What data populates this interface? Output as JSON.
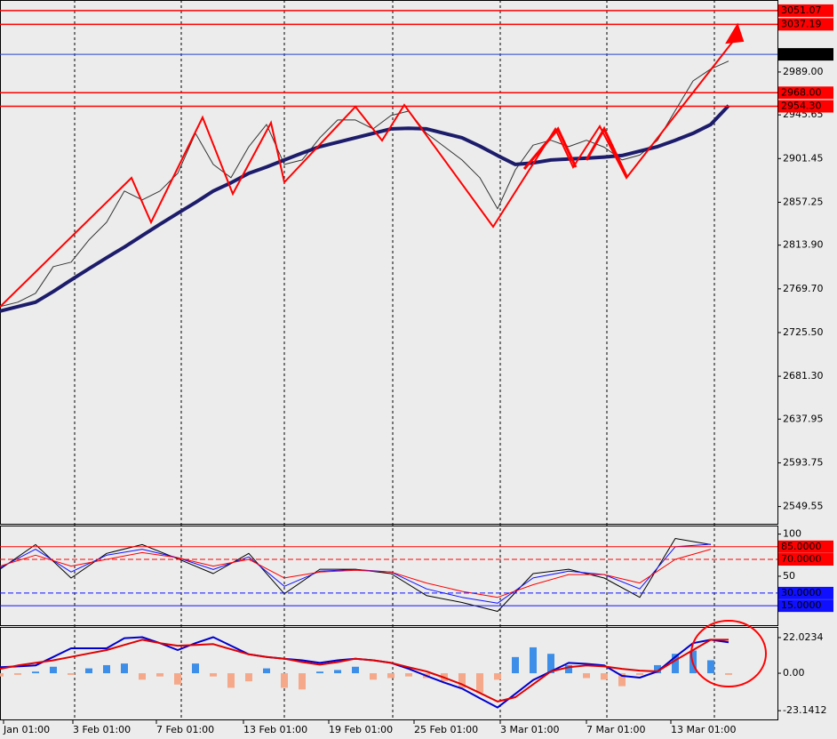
{
  "chart_data": [
    {
      "type": "line",
      "x": [
        0,
        4,
        8,
        12,
        16,
        20,
        24,
        28,
        32,
        36,
        40,
        44,
        48,
        52,
        56,
        60,
        64,
        68,
        72,
        76,
        80,
        84,
        88,
        92,
        96,
        100,
        104,
        108,
        112,
        116,
        120,
        124,
        128,
        132,
        136,
        140,
        144,
        148,
        152,
        156,
        160,
        164
      ],
      "series": [
        {
          "color": "#333333",
          "width": 1,
          "values": [
            2751.7,
            2756.2,
            2765.2,
            2792.2,
            2796.7,
            2819.1,
            2837.1,
            2868.6,
            2859.6,
            2868.6,
            2886.5,
            2927.0,
            2895.5,
            2882.1,
            2913.5,
            2936.0,
            2895.5,
            2900.0,
            2922.5,
            2940.5,
            2940.5,
            2931.5,
            2945.0,
            2949.5,
            2927.0,
            2913.5,
            2900.0,
            2882.1,
            2850.6,
            2890.0,
            2915.0,
            2920.0,
            2913.5,
            2920.0,
            2913.0,
            2900.0,
            2905.0,
            2920.0,
            2950.0,
            2980.0,
            2992.0,
            3000.0
          ]
        },
        {
          "color": "#1c1c6b",
          "width": 4,
          "values": [
            2747.2,
            2751.7,
            2756.2,
            2767,
            2778.7,
            2790,
            2801.2,
            2812,
            2823.6,
            2835,
            2846.1,
            2857,
            2868.6,
            2877,
            2886.5,
            2893,
            2900,
            2907,
            2913.5,
            2918,
            2922.5,
            2927,
            2931.5,
            2932,
            2931.5,
            2927,
            2922.5,
            2914,
            2904.5,
            2895.5,
            2897,
            2900,
            2901,
            2901.8,
            2903,
            2904.5,
            2909,
            2913.5,
            2920,
            2927,
            2936,
            2955
          ]
        }
      ],
      "xlim": [
        0,
        175
      ],
      "xticks": [
        {
          "value": 0.8,
          "label": "Jan 01:00"
        },
        {
          "value": 16.4,
          "label": "3 Feb 01:00"
        },
        {
          "value": 35.2,
          "label": "7 Feb 01:00"
        },
        {
          "value": 54.8,
          "label": "13 Feb 01:00"
        },
        {
          "value": 74,
          "label": "19 Feb 01:00"
        },
        {
          "value": 93.2,
          "label": "25 Feb 01:00"
        },
        {
          "value": 112.6,
          "label": "3 Mar 01:00"
        },
        {
          "value": 132,
          "label": "7 Mar 01:00"
        },
        {
          "value": 151,
          "label": "13 Mar 01:00"
        }
      ],
      "ylim": [
        2533,
        3060
      ],
      "yticks": [
        {
          "value": 2989,
          "label": "2989.00"
        },
        2945.65,
        2901.45,
        2857.25,
        {
          "value": 2813.9,
          "label": "2813.90"
        },
        {
          "value": 2769.7,
          "label": "2769.70"
        },
        {
          "value": 2725.5,
          "label": "2725.50"
        },
        {
          "value": 2681.3,
          "label": "2681.30"
        },
        2637.95,
        2593.75,
        2549.55
      ],
      "levels": [
        3051.07,
        3037.19,
        3006.85,
        {
          "value": 2968,
          "label": "2968.00"
        },
        {
          "value": 2954.3,
          "label": "2954.30"
        }
      ],
      "level_colors": [
        "#ff0000",
        "#ff0000",
        "#2244cc",
        "#ff0000",
        "#ff0000"
      ],
      "level_label_colors": [
        "#ff0000",
        "#ff0000",
        "#000000",
        "#ff0000",
        "#ff0000"
      ],
      "level_dashed": [
        false,
        false,
        false,
        false,
        false
      ]
    },
    {
      "type": "line",
      "x": [
        0,
        8,
        16,
        24,
        32,
        40,
        48,
        56,
        64,
        72,
        80,
        88,
        96,
        104,
        112,
        120,
        128,
        136,
        144,
        152,
        160
      ],
      "series": [
        {
          "color": "#000000",
          "width": 1,
          "values": [
            58.3,
            87.5,
            47.9,
            77.1,
            87.5,
            70.8,
            53.1,
            77.1,
            29.2,
            58.3,
            58.3,
            53.1,
            27.1,
            18.8,
            8.3,
            53.1,
            58.3,
            47.9,
            25.0,
            94.8,
            87.5
          ]
        },
        {
          "color": "#1010ff",
          "width": 1,
          "values": [
            60,
            82,
            55,
            75,
            82,
            72,
            58,
            73,
            38,
            56,
            58,
            55,
            35,
            25,
            18,
            48,
            56,
            52,
            35,
            85,
            88
          ]
        },
        {
          "color": "#ff0000",
          "width": 1,
          "values": [
            62,
            75,
            62,
            70,
            78,
            72,
            62,
            70,
            48,
            55,
            57,
            55,
            42,
            32,
            25,
            40,
            52,
            52,
            42,
            70,
            82
          ]
        }
      ],
      "xlim": [
        0,
        175
      ],
      "ylim": [
        -7,
        108
      ],
      "yticks": [
        100,
        50
      ],
      "levels": [
        {
          "value": 85,
          "label": "85.0000"
        },
        {
          "value": 70,
          "label": "70.0000"
        },
        {
          "value": 30,
          "label": "30.0000"
        },
        {
          "value": 15,
          "label": "15.0000"
        }
      ],
      "level_colors": [
        "#ff0000",
        "#ff0000",
        "#1010ff",
        "#1010ff"
      ],
      "level_label_colors": [
        "#ff0000",
        "#ff0000",
        "#1010ff",
        "#1010ff"
      ],
      "level_dashed": [
        false,
        true,
        true,
        false
      ]
    },
    {
      "type": "combo",
      "x": [
        0,
        4,
        8,
        12,
        16,
        20,
        24,
        28,
        32,
        36,
        40,
        44,
        48,
        52,
        56,
        60,
        64,
        68,
        72,
        76,
        80,
        84,
        88,
        92,
        96,
        100,
        104,
        108,
        112,
        116,
        120,
        124,
        128,
        132,
        136,
        140,
        144,
        148,
        152,
        156,
        160,
        164
      ],
      "series": [
        {
          "type": "bar",
          "color": "#3c8ee8",
          "negative_color": "#f5a88a",
          "values": [
            -2,
            -1,
            1,
            4,
            -1,
            3,
            5,
            6,
            -4,
            -2,
            -7,
            6,
            -2,
            -9,
            -5,
            3,
            -9,
            -10,
            1,
            2,
            4,
            -4,
            -3,
            -2,
            -3,
            -5,
            -9,
            -12,
            -4,
            10,
            16,
            12,
            5,
            -3,
            -4,
            -8,
            -1,
            5,
            12,
            14,
            8,
            -1
          ]
        },
        {
          "type": "line",
          "color": "#0000cc",
          "width": 2,
          "values": [
            3.7,
            4.2,
            4.8,
            10.1,
            15.4,
            15.4,
            15.4,
            21.7,
            22.3,
            18.6,
            14.3,
            18.6,
            22.3,
            17.0,
            11.7,
            10.1,
            9.0,
            8.0,
            6.4,
            8.0,
            9.0,
            8.0,
            6.4,
            2.7,
            -1.6,
            -5.8,
            -9.5,
            -15.4,
            -21.2,
            -12.7,
            -4.2,
            1.1,
            6.4,
            5.8,
            4.8,
            -1.6,
            -2.7,
            1.1,
            10.1,
            18.6,
            20.7,
            19.1
          ]
        },
        {
          "type": "line",
          "color": "#e00000",
          "width": 2,
          "values": [
            2.7,
            4.8,
            6.4,
            8.0,
            10.1,
            12.2,
            14.3,
            17.5,
            20.7,
            18.6,
            17.0,
            17.5,
            18.0,
            14.8,
            11.7,
            10.1,
            9.0,
            6.9,
            5.3,
            6.9,
            9.0,
            8.0,
            6.4,
            3.7,
            1.1,
            -2.7,
            -6.9,
            -12.2,
            -17.5,
            -14.8,
            -6.9,
            1.1,
            3.7,
            4.8,
            4.2,
            2.7,
            1.6,
            1.1,
            8.0,
            14.3,
            20.7,
            20.7
          ]
        }
      ],
      "xlim": [
        0,
        175
      ],
      "ylim": [
        -28,
        27.5
      ],
      "yticks": [
        22.0234,
        {
          "value": 0,
          "label": "0.00"
        },
        -23.1412
      ]
    }
  ]
}
